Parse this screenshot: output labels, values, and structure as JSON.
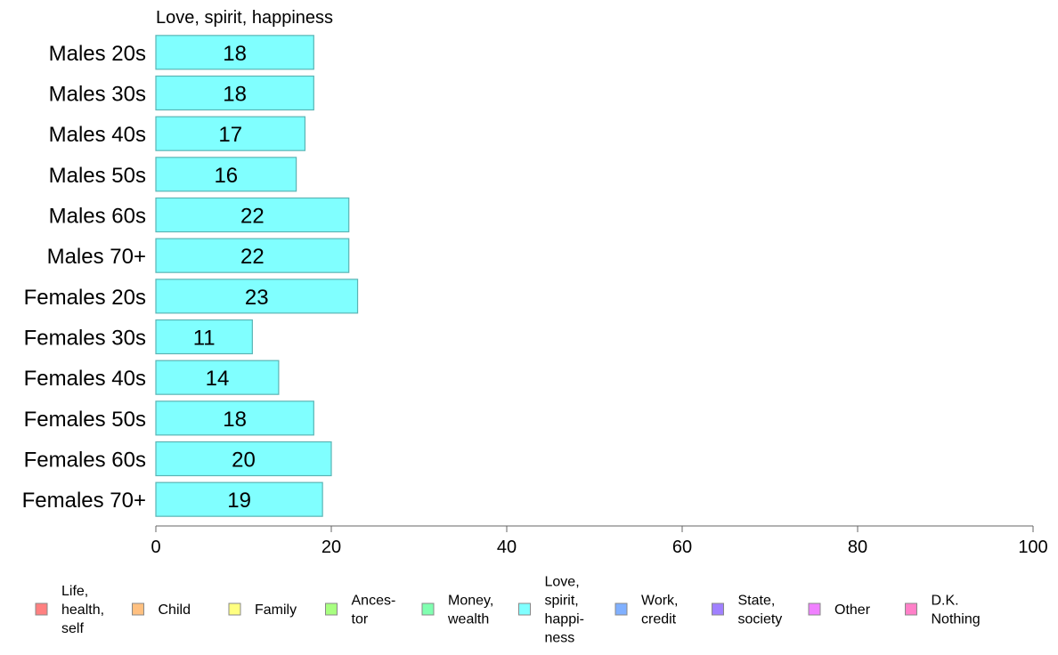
{
  "chart_data": {
    "type": "bar",
    "orientation": "horizontal",
    "title": "Love, spirit, happiness",
    "categories": [
      "Males 20s",
      "Males 30s",
      "Males 40s",
      "Males 50s",
      "Males 60s",
      "Males 70+",
      "Females 20s",
      "Females 30s",
      "Females 40s",
      "Females 50s",
      "Females 60s",
      "Females 70+"
    ],
    "values": [
      18,
      18,
      17,
      16,
      22,
      22,
      23,
      11,
      14,
      18,
      20,
      19
    ],
    "value_labels": [
      "18",
      "18",
      "17",
      "16",
      "22",
      "22",
      "23",
      "11",
      "14",
      "18",
      "20",
      "19"
    ],
    "xlim": [
      0,
      100
    ],
    "xticks": [
      0,
      20,
      40,
      60,
      80,
      100
    ],
    "xtick_labels": [
      "0",
      "20",
      "40",
      "60",
      "80",
      "100"
    ],
    "bar_color": "#80FFFF",
    "bar_edge_color": "#5AB4B4",
    "grid": false,
    "legend": {
      "placement": "bottom",
      "entries": [
        {
          "label": [
            "Life,",
            "health,",
            "self"
          ],
          "color": "#FF8080"
        },
        {
          "label": [
            "Child"
          ],
          "color": "#FFC080"
        },
        {
          "label": [
            "Family"
          ],
          "color": "#FFFF80"
        },
        {
          "label": [
            "Ances-",
            "tor"
          ],
          "color": "#A8FF80"
        },
        {
          "label": [
            "Money,",
            "wealth"
          ],
          "color": "#80FFB0"
        },
        {
          "label": [
            "Love,",
            "spirit,",
            "happi-",
            "ness"
          ],
          "color": "#80FFFF"
        },
        {
          "label": [
            "Work,",
            "credit"
          ],
          "color": "#80B0FF"
        },
        {
          "label": [
            "State,",
            "society"
          ],
          "color": "#A080FF"
        },
        {
          "label": [
            "Other"
          ],
          "color": "#F080FF"
        },
        {
          "label": [
            "D.K.",
            "Nothing"
          ],
          "color": "#FF80C8"
        }
      ]
    }
  }
}
